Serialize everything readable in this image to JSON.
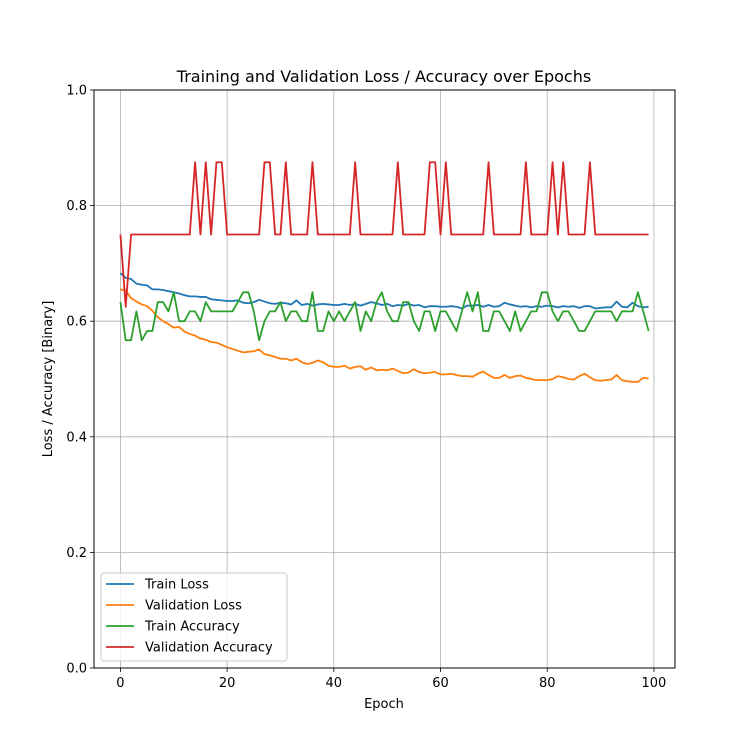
{
  "chart_data": {
    "type": "line",
    "title": "Training and Validation Loss / Accuracy over Epochs",
    "xlabel": "Epoch",
    "ylabel": "Loss / Accuracy [Binary]",
    "xlim": [
      -4.95,
      103.95
    ],
    "ylim": [
      0.0,
      1.0
    ],
    "xticks": [
      0,
      20,
      40,
      60,
      80,
      100
    ],
    "yticks": [
      0.0,
      0.2,
      0.4,
      0.6,
      0.8,
      1.0
    ],
    "grid": true,
    "legend_position": "lower-left",
    "x": [
      0,
      1,
      2,
      3,
      4,
      5,
      6,
      7,
      8,
      9,
      10,
      11,
      12,
      13,
      14,
      15,
      16,
      17,
      18,
      19,
      20,
      21,
      22,
      23,
      24,
      25,
      26,
      27,
      28,
      29,
      30,
      31,
      32,
      33,
      34,
      35,
      36,
      37,
      38,
      39,
      40,
      41,
      42,
      43,
      44,
      45,
      46,
      47,
      48,
      49,
      50,
      51,
      52,
      53,
      54,
      55,
      56,
      57,
      58,
      59,
      60,
      61,
      62,
      63,
      64,
      65,
      66,
      67,
      68,
      69,
      70,
      71,
      72,
      73,
      74,
      75,
      76,
      77,
      78,
      79,
      80,
      81,
      82,
      83,
      84,
      85,
      86,
      87,
      88,
      89,
      90,
      91,
      92,
      93,
      94,
      95,
      96,
      97,
      98,
      99
    ],
    "series": [
      {
        "name": "Train Loss",
        "color": "#1f77b4",
        "values": [
          0.683,
          0.675,
          0.673,
          0.665,
          0.663,
          0.662,
          0.655,
          0.655,
          0.654,
          0.652,
          0.65,
          0.648,
          0.645,
          0.643,
          0.643,
          0.642,
          0.642,
          0.638,
          0.637,
          0.636,
          0.635,
          0.635,
          0.636,
          0.632,
          0.631,
          0.633,
          0.637,
          0.634,
          0.631,
          0.63,
          0.632,
          0.631,
          0.629,
          0.636,
          0.628,
          0.63,
          0.627,
          0.629,
          0.63,
          0.629,
          0.628,
          0.628,
          0.63,
          0.628,
          0.63,
          0.627,
          0.63,
          0.633,
          0.631,
          0.628,
          0.63,
          0.626,
          0.628,
          0.627,
          0.63,
          0.627,
          0.628,
          0.624,
          0.626,
          0.626,
          0.625,
          0.625,
          0.626,
          0.625,
          0.622,
          0.627,
          0.627,
          0.628,
          0.625,
          0.628,
          0.625,
          0.626,
          0.632,
          0.629,
          0.627,
          0.625,
          0.626,
          0.624,
          0.626,
          0.625,
          0.627,
          0.626,
          0.624,
          0.626,
          0.625,
          0.626,
          0.623,
          0.626,
          0.626,
          0.622,
          0.623,
          0.624,
          0.624,
          0.634,
          0.625,
          0.624,
          0.632,
          0.626,
          0.624,
          0.625
        ]
      },
      {
        "name": "Validation Loss",
        "color": "#ff7f0e",
        "values": [
          0.655,
          0.653,
          0.64,
          0.634,
          0.629,
          0.626,
          0.618,
          0.607,
          0.6,
          0.595,
          0.589,
          0.59,
          0.582,
          0.578,
          0.575,
          0.57,
          0.568,
          0.564,
          0.563,
          0.559,
          0.555,
          0.552,
          0.549,
          0.546,
          0.547,
          0.548,
          0.551,
          0.543,
          0.541,
          0.538,
          0.535,
          0.535,
          0.532,
          0.535,
          0.529,
          0.526,
          0.528,
          0.532,
          0.529,
          0.523,
          0.521,
          0.521,
          0.523,
          0.518,
          0.521,
          0.522,
          0.516,
          0.52,
          0.515,
          0.516,
          0.515,
          0.518,
          0.514,
          0.51,
          0.511,
          0.517,
          0.512,
          0.51,
          0.511,
          0.512,
          0.508,
          0.508,
          0.509,
          0.507,
          0.505,
          0.505,
          0.504,
          0.509,
          0.513,
          0.507,
          0.502,
          0.502,
          0.507,
          0.502,
          0.505,
          0.506,
          0.502,
          0.5,
          0.498,
          0.498,
          0.498,
          0.5,
          0.505,
          0.503,
          0.5,
          0.499,
          0.505,
          0.509,
          0.503,
          0.498,
          0.497,
          0.498,
          0.499,
          0.507,
          0.498,
          0.496,
          0.495,
          0.495,
          0.502,
          0.501
        ]
      },
      {
        "name": "Train Accuracy",
        "color": "#2ca02c",
        "values": [
          0.633,
          0.567,
          0.567,
          0.617,
          0.567,
          0.583,
          0.583,
          0.633,
          0.633,
          0.617,
          0.65,
          0.6,
          0.6,
          0.617,
          0.617,
          0.6,
          0.633,
          0.617,
          0.617,
          0.617,
          0.617,
          0.617,
          0.633,
          0.65,
          0.65,
          0.617,
          0.567,
          0.6,
          0.617,
          0.617,
          0.633,
          0.6,
          0.617,
          0.617,
          0.6,
          0.6,
          0.65,
          0.583,
          0.583,
          0.617,
          0.6,
          0.617,
          0.6,
          0.617,
          0.633,
          0.583,
          0.617,
          0.6,
          0.633,
          0.65,
          0.617,
          0.6,
          0.6,
          0.633,
          0.633,
          0.6,
          0.583,
          0.617,
          0.617,
          0.583,
          0.617,
          0.617,
          0.6,
          0.583,
          0.617,
          0.65,
          0.617,
          0.65,
          0.583,
          0.583,
          0.617,
          0.617,
          0.6,
          0.583,
          0.617,
          0.583,
          0.6,
          0.617,
          0.617,
          0.65,
          0.65,
          0.617,
          0.6,
          0.617,
          0.617,
          0.6,
          0.583,
          0.583,
          0.6,
          0.617,
          0.617,
          0.617,
          0.617,
          0.6,
          0.617,
          0.617,
          0.617,
          0.65,
          0.617,
          0.583
        ]
      },
      {
        "name": "Validation Accuracy",
        "color": "#d62728",
        "values": [
          0.75,
          0.625,
          0.75,
          0.75,
          0.75,
          0.75,
          0.75,
          0.75,
          0.75,
          0.75,
          0.75,
          0.75,
          0.75,
          0.75,
          0.875,
          0.75,
          0.875,
          0.75,
          0.875,
          0.875,
          0.75,
          0.75,
          0.75,
          0.75,
          0.75,
          0.75,
          0.75,
          0.875,
          0.875,
          0.75,
          0.75,
          0.875,
          0.75,
          0.75,
          0.75,
          0.75,
          0.875,
          0.75,
          0.75,
          0.75,
          0.75,
          0.75,
          0.75,
          0.75,
          0.875,
          0.75,
          0.75,
          0.75,
          0.75,
          0.75,
          0.75,
          0.75,
          0.875,
          0.75,
          0.75,
          0.75,
          0.75,
          0.75,
          0.875,
          0.875,
          0.75,
          0.875,
          0.75,
          0.75,
          0.75,
          0.75,
          0.75,
          0.75,
          0.75,
          0.875,
          0.75,
          0.75,
          0.75,
          0.75,
          0.75,
          0.75,
          0.875,
          0.75,
          0.75,
          0.75,
          0.75,
          0.875,
          0.75,
          0.875,
          0.75,
          0.75,
          0.75,
          0.75,
          0.875,
          0.75,
          0.75,
          0.75,
          0.75,
          0.75,
          0.75,
          0.75,
          0.75,
          0.75,
          0.75,
          0.75
        ]
      }
    ]
  }
}
